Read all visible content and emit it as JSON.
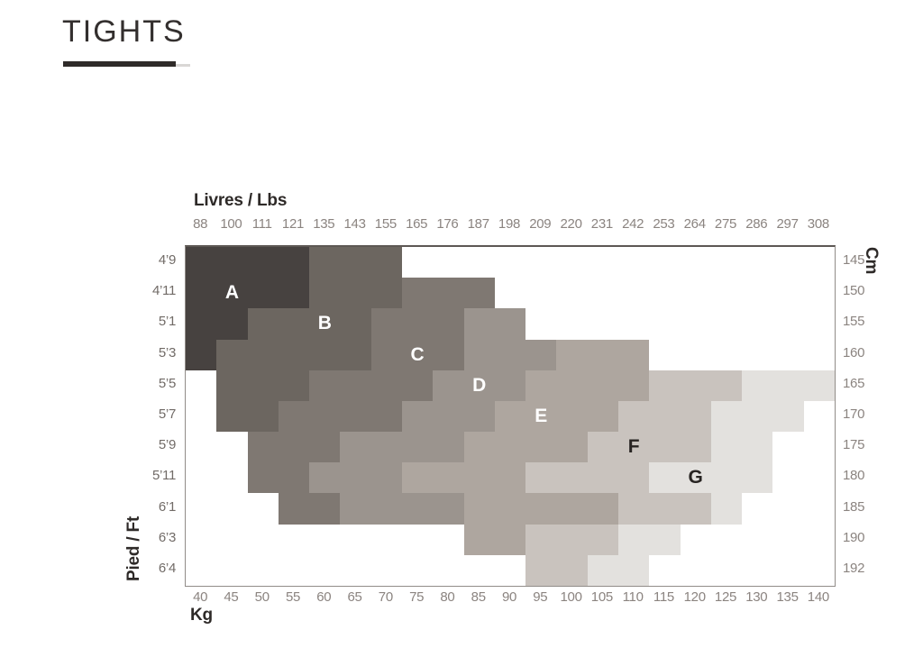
{
  "title": "TIGHTS",
  "chart_data": {
    "type": "heatmap",
    "title": "TIGHTS",
    "axes": {
      "top": {
        "label": "Livres / Lbs",
        "values": [
          88,
          100,
          111,
          121,
          135,
          143,
          155,
          165,
          176,
          187,
          198,
          209,
          220,
          231,
          242,
          253,
          264,
          275,
          286,
          297,
          308
        ]
      },
      "bottom": {
        "label": "Kg",
        "values": [
          40,
          45,
          50,
          55,
          60,
          65,
          70,
          75,
          80,
          85,
          90,
          95,
          100,
          105,
          110,
          115,
          120,
          125,
          130,
          135,
          140
        ]
      },
      "left": {
        "label": "Pied / Ft",
        "values": [
          "4’9",
          "4’11",
          "5’1",
          "5’3",
          "5’5",
          "5’7",
          "5’9",
          "5’11",
          "6’1",
          "6’3",
          "6’4"
        ]
      },
      "right": {
        "label": "Cm",
        "values": [
          145,
          150,
          155,
          160,
          165,
          170,
          175,
          180,
          185,
          190,
          192
        ]
      }
    },
    "zones": [
      {
        "id": "A",
        "color": "#474240",
        "label_color": "#ffffff"
      },
      {
        "id": "B",
        "color": "#6c6660",
        "label_color": "#ffffff"
      },
      {
        "id": "C",
        "color": "#7f7872",
        "label_color": "#ffffff"
      },
      {
        "id": "D",
        "color": "#9b948e",
        "label_color": "#ffffff"
      },
      {
        "id": "E",
        "color": "#aea69f",
        "label_color": "#ffffff"
      },
      {
        "id": "F",
        "color": "#c9c3be",
        "label_color": "#282422"
      },
      {
        "id": "G",
        "color": "#e3e1de",
        "label_color": "#282422"
      }
    ],
    "cells": [
      {
        "row": 0,
        "height": "4’9",
        "cm": 145,
        "spans": [
          {
            "zone": "A",
            "from": 0,
            "to": 3
          },
          {
            "zone": "B",
            "from": 4,
            "to": 6
          }
        ]
      },
      {
        "row": 1,
        "height": "4’11",
        "cm": 150,
        "spans": [
          {
            "zone": "A",
            "from": 0,
            "to": 3
          },
          {
            "zone": "B",
            "from": 4,
            "to": 6
          },
          {
            "zone": "C",
            "from": 7,
            "to": 9
          }
        ]
      },
      {
        "row": 2,
        "height": "5’1",
        "cm": 155,
        "spans": [
          {
            "zone": "A",
            "from": 0,
            "to": 1
          },
          {
            "zone": "B",
            "from": 2,
            "to": 5
          },
          {
            "zone": "C",
            "from": 6,
            "to": 8
          },
          {
            "zone": "D",
            "from": 9,
            "to": 10
          }
        ]
      },
      {
        "row": 3,
        "height": "5’3",
        "cm": 160,
        "spans": [
          {
            "zone": "A",
            "from": 0,
            "to": 0
          },
          {
            "zone": "B",
            "from": 1,
            "to": 5
          },
          {
            "zone": "C",
            "from": 6,
            "to": 8
          },
          {
            "zone": "D",
            "from": 9,
            "to": 11
          },
          {
            "zone": "E",
            "from": 12,
            "to": 14
          }
        ]
      },
      {
        "row": 4,
        "height": "5’5",
        "cm": 165,
        "spans": [
          {
            "zone": "B",
            "from": 1,
            "to": 3
          },
          {
            "zone": "C",
            "from": 4,
            "to": 7
          },
          {
            "zone": "D",
            "from": 8,
            "to": 10
          },
          {
            "zone": "E",
            "from": 11,
            "to": 14
          },
          {
            "zone": "F",
            "from": 15,
            "to": 17
          },
          {
            "zone": "G",
            "from": 18,
            "to": 20
          }
        ]
      },
      {
        "row": 5,
        "height": "5’7",
        "cm": 170,
        "spans": [
          {
            "zone": "B",
            "from": 1,
            "to": 2
          },
          {
            "zone": "C",
            "from": 3,
            "to": 6
          },
          {
            "zone": "D",
            "from": 7,
            "to": 9
          },
          {
            "zone": "E",
            "from": 10,
            "to": 13
          },
          {
            "zone": "F",
            "from": 14,
            "to": 16
          },
          {
            "zone": "G",
            "from": 17,
            "to": 19
          }
        ]
      },
      {
        "row": 6,
        "height": "5’9",
        "cm": 175,
        "spans": [
          {
            "zone": "C",
            "from": 2,
            "to": 4
          },
          {
            "zone": "D",
            "from": 5,
            "to": 8
          },
          {
            "zone": "E",
            "from": 9,
            "to": 12
          },
          {
            "zone": "F",
            "from": 13,
            "to": 16
          },
          {
            "zone": "G",
            "from": 17,
            "to": 18
          }
        ]
      },
      {
        "row": 7,
        "height": "5’11",
        "cm": 180,
        "spans": [
          {
            "zone": "C",
            "from": 2,
            "to": 3
          },
          {
            "zone": "D",
            "from": 4,
            "to": 6
          },
          {
            "zone": "E",
            "from": 7,
            "to": 10
          },
          {
            "zone": "F",
            "from": 11,
            "to": 14
          },
          {
            "zone": "G",
            "from": 15,
            "to": 18
          }
        ]
      },
      {
        "row": 8,
        "height": "6’1",
        "cm": 185,
        "spans": [
          {
            "zone": "C",
            "from": 3,
            "to": 4
          },
          {
            "zone": "D",
            "from": 5,
            "to": 8
          },
          {
            "zone": "E",
            "from": 9,
            "to": 13
          },
          {
            "zone": "F",
            "from": 14,
            "to": 16
          },
          {
            "zone": "G",
            "from": 17,
            "to": 17
          }
        ]
      },
      {
        "row": 9,
        "height": "6’3",
        "cm": 190,
        "spans": [
          {
            "zone": "E",
            "from": 9,
            "to": 10
          },
          {
            "zone": "F",
            "from": 11,
            "to": 13
          },
          {
            "zone": "G",
            "from": 14,
            "to": 15
          }
        ]
      },
      {
        "row": 10,
        "height": "6’4",
        "cm": 192,
        "spans": [
          {
            "zone": "F",
            "from": 11,
            "to": 12
          },
          {
            "zone": "G",
            "from": 13,
            "to": 14
          }
        ]
      }
    ],
    "zone_labels": [
      {
        "zone": "A",
        "row": 1,
        "col": 1
      },
      {
        "zone": "B",
        "row": 2,
        "col": 4
      },
      {
        "zone": "C",
        "row": 3,
        "col": 7
      },
      {
        "zone": "D",
        "row": 4,
        "col": 9
      },
      {
        "zone": "E",
        "row": 5,
        "col": 11
      },
      {
        "zone": "F",
        "row": 6,
        "col": 14
      },
      {
        "zone": "G",
        "row": 7,
        "col": 16
      }
    ]
  }
}
